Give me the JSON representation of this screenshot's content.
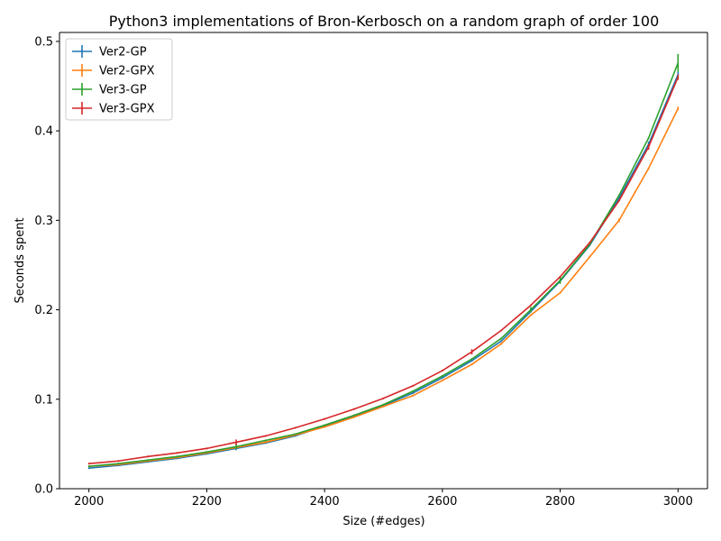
{
  "chart_data": {
    "type": "line",
    "title": "Python3 implementations of Bron-Kerbosch on a random graph of order 100",
    "xlabel": "Size (#edges)",
    "ylabel": "Seconds spent",
    "xlim": [
      1950,
      3050
    ],
    "ylim": [
      0,
      0.51
    ],
    "xticks": [
      2000,
      2200,
      2400,
      2600,
      2800,
      3000
    ],
    "yticks": [
      0.0,
      0.1,
      0.2,
      0.3,
      0.4,
      0.5
    ],
    "xtick_labels": [
      "2000",
      "2200",
      "2400",
      "2600",
      "2800",
      "3000"
    ],
    "ytick_labels": [
      "0.0",
      "0.1",
      "0.2",
      "0.3",
      "0.4",
      "0.5"
    ],
    "grid": false,
    "legend_position": "top-left",
    "x": [
      2000,
      2050,
      2100,
      2150,
      2200,
      2250,
      2300,
      2350,
      2400,
      2450,
      2500,
      2550,
      2600,
      2650,
      2700,
      2750,
      2800,
      2850,
      2900,
      2950,
      3000
    ],
    "series": [
      {
        "name": "Ver2-GP",
        "color": "#1f77b4",
        "values": [
          0.023,
          0.026,
          0.03,
          0.034,
          0.039,
          0.045,
          0.051,
          0.059,
          0.07,
          0.081,
          0.093,
          0.107,
          0.124,
          0.143,
          0.165,
          0.198,
          0.232,
          0.272,
          0.325,
          0.385,
          0.463
        ],
        "err": [
          0.001,
          0.001,
          0.001,
          0.001,
          0.001,
          0.002,
          0.001,
          0.001,
          0.001,
          0.001,
          0.001,
          0.001,
          0.001,
          0.001,
          0.001,
          0.001,
          0.001,
          0.001,
          0.001,
          0.003,
          0.003
        ]
      },
      {
        "name": "Ver2-GPX",
        "color": "#ff7f0e",
        "values": [
          0.025,
          0.027,
          0.031,
          0.035,
          0.04,
          0.046,
          0.052,
          0.06,
          0.069,
          0.08,
          0.092,
          0.104,
          0.121,
          0.139,
          0.162,
          0.194,
          0.219,
          0.259,
          0.3,
          0.358,
          0.425
        ],
        "err": [
          0.001,
          0.001,
          0.001,
          0.001,
          0.001,
          0.001,
          0.001,
          0.001,
          0.001,
          0.001,
          0.001,
          0.001,
          0.001,
          0.001,
          0.001,
          0.001,
          0.001,
          0.001,
          0.002,
          0.001,
          0.002
        ]
      },
      {
        "name": "Ver3-GP",
        "color": "#2ca02c",
        "values": [
          0.025,
          0.028,
          0.032,
          0.036,
          0.041,
          0.047,
          0.054,
          0.061,
          0.071,
          0.082,
          0.094,
          0.109,
          0.126,
          0.145,
          0.168,
          0.2,
          0.233,
          0.273,
          0.328,
          0.392,
          0.476
        ],
        "err": [
          0.001,
          0.001,
          0.001,
          0.001,
          0.001,
          0.003,
          0.001,
          0.001,
          0.001,
          0.001,
          0.001,
          0.001,
          0.001,
          0.001,
          0.001,
          0.003,
          0.004,
          0.001,
          0.001,
          0.001,
          0.01
        ]
      },
      {
        "name": "Ver3-GPX",
        "color": "#d62728",
        "values": [
          0.028,
          0.031,
          0.036,
          0.04,
          0.045,
          0.052,
          0.059,
          0.068,
          0.078,
          0.089,
          0.101,
          0.115,
          0.132,
          0.153,
          0.177,
          0.205,
          0.237,
          0.275,
          0.322,
          0.382,
          0.46
        ],
        "err": [
          0.001,
          0.001,
          0.001,
          0.001,
          0.001,
          0.003,
          0.001,
          0.001,
          0.001,
          0.001,
          0.001,
          0.001,
          0.001,
          0.003,
          0.001,
          0.001,
          0.001,
          0.001,
          0.001,
          0.003,
          0.003
        ]
      }
    ]
  }
}
